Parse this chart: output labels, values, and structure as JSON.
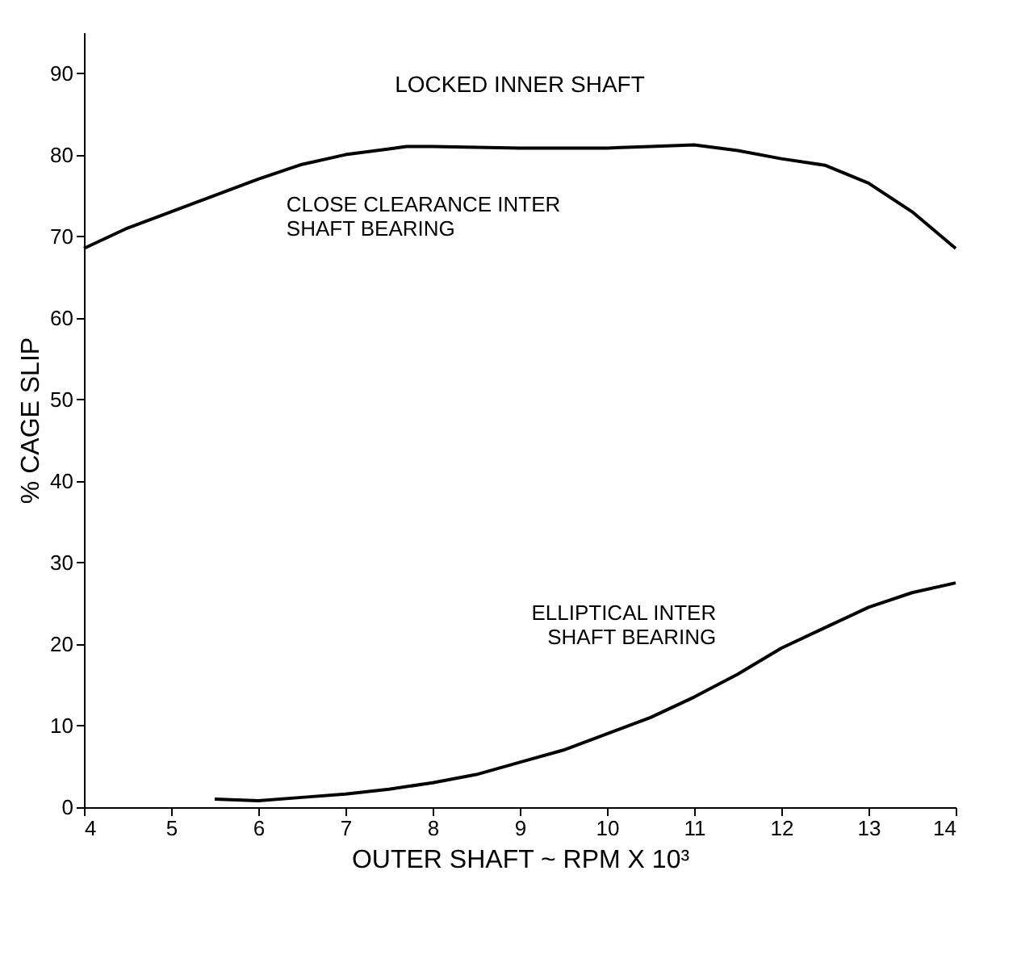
{
  "chart_data": {
    "type": "line",
    "title": "LOCKED INNER SHAFT",
    "xlabel": "OUTER SHAFT ~ RPM X 10³",
    "ylabel": "% CAGE SLIP",
    "series": [
      {
        "color": "#000000",
        "x": [
          4,
          4.5,
          5,
          5.5,
          6,
          6.5,
          7,
          7.5,
          7.7,
          8,
          8.5,
          9,
          9.5,
          10,
          10.5,
          11,
          11.5,
          12,
          12.5,
          13,
          13.5,
          14
        ],
        "values": [
          68.5,
          71,
          73,
          75,
          77,
          78.8,
          80,
          80.7,
          81,
          81,
          80.9,
          80.8,
          80.8,
          80.8,
          81,
          81.2,
          80.5,
          79.5,
          78.7,
          76.5,
          73,
          68.5
        ]
      },
      {
        "color": "#000000",
        "x": [
          5.5,
          6,
          6.5,
          7,
          7.5,
          8,
          8.5,
          9,
          9.5,
          10,
          10.5,
          11,
          11.5,
          12,
          12.5,
          13,
          13.5,
          14
        ],
        "values": [
          1,
          0.8,
          1.2,
          1.6,
          2.2,
          3,
          4,
          5.5,
          7,
          9,
          11,
          13.5,
          16.3,
          19.5,
          22,
          24.5,
          26.3,
          27.5
        ]
      }
    ],
    "annotations": [
      {
        "text": "CLOSE CLEARANCE INTER SHAFT BEARING",
        "x": 6.1,
        "y": 77
      },
      {
        "text": "ELLIPTICAL INTER SHAFT BEARING",
        "x": 11.4,
        "y": 15.8
      }
    ],
    "xlim": [
      4,
      14
    ],
    "xticks": [
      4,
      5,
      6,
      7,
      8,
      9,
      10,
      11,
      12,
      13,
      14
    ],
    "ylim": [
      0,
      95
    ],
    "yticks": [
      0,
      10,
      20,
      30,
      40,
      50,
      60,
      70,
      80,
      90
    ],
    "grid": false,
    "legend": false,
    "marker": "none",
    "line_style": "solid"
  }
}
